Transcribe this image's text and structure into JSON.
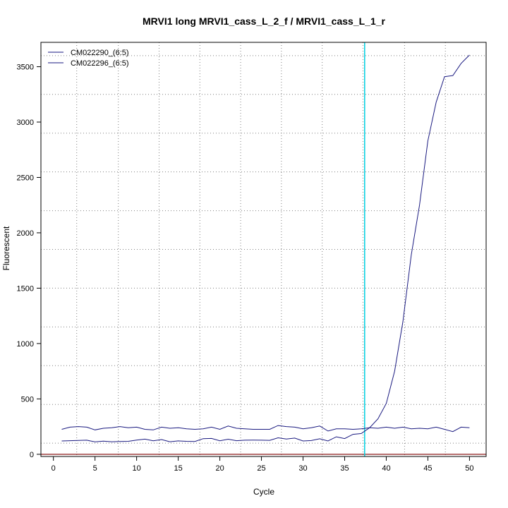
{
  "chart_data": {
    "type": "line",
    "title": "MRVI1 long MRVI1_cass_L_2_f / MRVI1_cass_L_1_r",
    "xlabel": "Cycle",
    "ylabel": "Fluorescent",
    "xlim": [
      -1.5,
      52
    ],
    "ylim": [
      -20,
      3720
    ],
    "xticks": [
      0,
      5,
      10,
      15,
      20,
      25,
      30,
      35,
      40,
      45,
      50
    ],
    "yticks": [
      0,
      500,
      1000,
      1500,
      2000,
      2500,
      3000,
      3500
    ],
    "grid": true,
    "grid_x": [
      2.8,
      7.8,
      12.7,
      17.6,
      22.5,
      27.4,
      32.3,
      37.2,
      42.2,
      47.1
    ],
    "grid_y": [
      100,
      450,
      800,
      1150,
      1500,
      1850,
      2200,
      2550,
      2900,
      3250,
      3600
    ],
    "threshold_cycle": 37.4,
    "baseline": 0,
    "legend_position": "top-left",
    "colors": {
      "series": "#1a1a80",
      "threshold": "#00d0e0",
      "baseline": "#8b1a1a",
      "grid": "#808080"
    },
    "series": [
      {
        "name": "CM022290_(6:5)",
        "x": [
          1,
          2,
          3,
          4,
          5,
          6,
          7,
          8,
          9,
          10,
          11,
          12,
          13,
          14,
          15,
          16,
          17,
          18,
          19,
          20,
          21,
          22,
          23,
          24,
          25,
          26,
          27,
          28,
          29,
          30,
          31,
          32,
          33,
          34,
          35,
          36,
          37,
          38,
          39,
          40,
          41,
          42,
          43,
          44,
          45,
          46,
          47,
          48,
          49,
          50
        ],
        "y": [
          120,
          123,
          125,
          127,
          112,
          118,
          113,
          116,
          117,
          128,
          137,
          122,
          133,
          113,
          121,
          117,
          116,
          141,
          143,
          122,
          136,
          123,
          127,
          128,
          127,
          126,
          149,
          138,
          146,
          120,
          124,
          140,
          120,
          158,
          142,
          180,
          188,
          240,
          320,
          460,
          750,
          1200,
          1800,
          2250,
          2830,
          3180,
          3410,
          3420,
          3530,
          3605
        ]
      },
      {
        "name": "CM022296_(6:5)",
        "x": [
          1,
          2,
          3,
          4,
          5,
          6,
          7,
          8,
          9,
          10,
          11,
          12,
          13,
          14,
          15,
          16,
          17,
          18,
          19,
          20,
          21,
          22,
          23,
          24,
          25,
          26,
          27,
          28,
          29,
          30,
          31,
          32,
          33,
          34,
          35,
          36,
          37,
          38,
          39,
          40,
          41,
          42,
          43,
          44,
          45,
          46,
          47,
          48,
          49,
          50
        ],
        "y": [
          225,
          245,
          250,
          245,
          220,
          235,
          240,
          250,
          240,
          245,
          225,
          220,
          245,
          235,
          240,
          230,
          225,
          230,
          245,
          225,
          255,
          235,
          230,
          225,
          225,
          225,
          260,
          250,
          245,
          230,
          240,
          255,
          210,
          230,
          230,
          225,
          230,
          240,
          235,
          245,
          235,
          245,
          230,
          235,
          230,
          245,
          225,
          205,
          245,
          240
        ]
      }
    ]
  }
}
